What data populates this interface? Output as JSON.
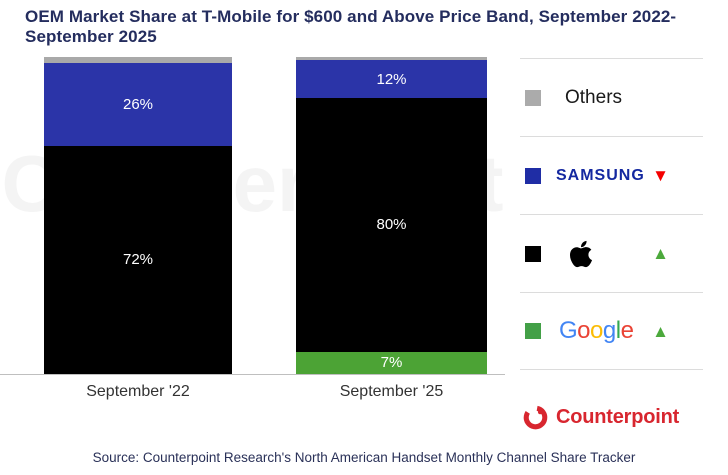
{
  "title": "OEM Market Share at T-Mobile for $600 and Above Price Band, September 2022-September 2025",
  "source": "Source: Counterpoint Research's North American Handset Monthly Channel Share Tracker",
  "watermark": "Counterpoint",
  "chart_data": {
    "type": "bar",
    "stacked": true,
    "categories": [
      "September '22",
      "September '25"
    ],
    "series": [
      {
        "name": "Others",
        "values": [
          2,
          1
        ],
        "color": "#A9A9A9"
      },
      {
        "name": "Samsung",
        "values": [
          26,
          12
        ],
        "color": "#2B34A8"
      },
      {
        "name": "Apple",
        "values": [
          72,
          80
        ],
        "color": "#000000"
      },
      {
        "name": "Google",
        "values": [
          0,
          7
        ],
        "color": "#4CA335"
      }
    ],
    "value_suffix": "%",
    "label_min_value": 5,
    "ylim": [
      0,
      100
    ],
    "title": "OEM Market Share at T-Mobile for $600 and Above Price Band, September 2022-September 2025",
    "legend_position": "right",
    "grid": false
  },
  "legend": {
    "items": [
      {
        "name": "Others",
        "label": "Others",
        "swatch": "#ABABAB",
        "trend": "none"
      },
      {
        "name": "Samsung",
        "label": "SAMSUNG",
        "swatch": "#1F2DA5",
        "trend": "down"
      },
      {
        "name": "Apple",
        "label": "",
        "swatch": "#000000",
        "trend": "up"
      },
      {
        "name": "Google",
        "label": "Google",
        "swatch": "#43A047",
        "trend": "up",
        "letters": [
          {
            "ch": "G",
            "color": "#4285F4"
          },
          {
            "ch": "o",
            "color": "#EA4335"
          },
          {
            "ch": "o",
            "color": "#FBBC05"
          },
          {
            "ch": "g",
            "color": "#4285F4"
          },
          {
            "ch": "l",
            "color": "#34A853"
          },
          {
            "ch": "e",
            "color": "#EA4335"
          }
        ]
      }
    ],
    "trend_glyphs": {
      "up": "▲",
      "down": "▼"
    }
  },
  "branding": {
    "logo_text": "Counterpoint",
    "logo_color": "#D8262F"
  }
}
